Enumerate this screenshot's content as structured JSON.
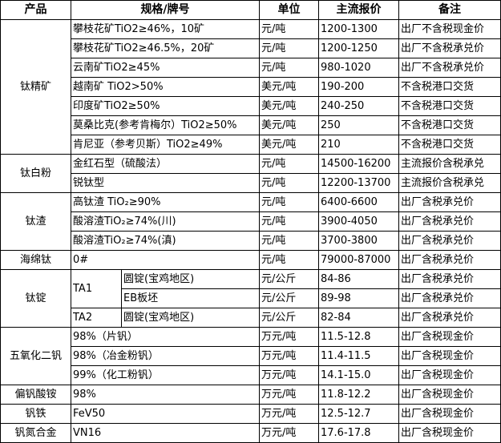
{
  "headers": {
    "product": "产品",
    "spec": "规格/牌号",
    "unit": "单位",
    "price": "主流报价",
    "note": "备注"
  },
  "groups": [
    {
      "product": "钛精矿",
      "rows": [
        {
          "spec": "攀枝花矿TiO2≥46%，10矿",
          "unit": "元/吨",
          "price": "1200-1300",
          "note": "出厂不含税现金价"
        },
        {
          "spec": "攀枝花矿TiO2≥46.5%，20矿",
          "unit": "元/吨",
          "price": "1200-1250",
          "note": "出厂不含税承兑价"
        },
        {
          "spec": "云南矿TiO2≥45%",
          "unit": "元/吨",
          "price": "980-1020",
          "note": "出厂不含税承兑价"
        },
        {
          "spec": "越南矿 TiO2>50%",
          "unit": "美元/吨",
          "price": "190-200",
          "note": "不含税港口交货"
        },
        {
          "spec": "印度矿TiO2≥50%",
          "unit": "美元/吨",
          "price": "240-250",
          "note": "不含税港口交货"
        },
        {
          "spec": "莫桑比克(参考肯梅尔）TiO2≥50%",
          "unit": "美元/吨",
          "price": "250",
          "note": "不含税港口交货"
        },
        {
          "spec": "肯尼亚（参考贝斯）TiO2≥49%",
          "unit": "美元/吨",
          "price": "210",
          "note": "不含税港口交货"
        }
      ]
    },
    {
      "product": "钛白粉",
      "rows": [
        {
          "spec": "金红石型（硫酸法）",
          "unit": "元/吨",
          "price": "14500-16200",
          "note": "主流报价含税承兑"
        },
        {
          "spec": "锐钛型",
          "unit": "元/吨",
          "price": "12200-13700",
          "note": "主流报价含税承兑"
        }
      ]
    },
    {
      "product": "钛渣",
      "rows": [
        {
          "spec": "高钛渣 TiO₂≥90%",
          "unit": "元/吨",
          "price": "6400-6600",
          "note": "出厂含税承兑价"
        },
        {
          "spec": "酸溶渣TiO₂≥74%(川)",
          "unit": "元/吨",
          "price": "3900-4050",
          "note": "出厂含税承兑价"
        },
        {
          "spec": "酸溶渣TiO₂≥74%(滇)",
          "unit": "元/吨",
          "price": "3700-3800",
          "note": "出厂含税承兑价"
        }
      ]
    },
    {
      "product": "海绵钛",
      "rows": [
        {
          "spec": "0#",
          "unit": "元/吨",
          "price": "79000-87000",
          "note": "出厂含税承兑价"
        }
      ]
    },
    {
      "product": "钛锭",
      "rows": [
        {
          "grade": "TA1",
          "spec": "圆锭(宝鸡地区)",
          "unit": "元/公斤",
          "price": "84-86",
          "note": "出厂含税承兑价"
        },
        {
          "grade": "TA1",
          "spec": "EB板坯",
          "unit": "元/公斤",
          "price": "89-98",
          "note": "出厂含税承兑价"
        },
        {
          "grade": "TA2",
          "spec": "圆锭(宝鸡地区)",
          "unit": "元/公斤",
          "price": "82-84",
          "note": "出厂含税承兑价"
        }
      ]
    },
    {
      "product": "五氧化二钒",
      "rows": [
        {
          "spec": "98%（片钒）",
          "unit": "万元/吨",
          "price": "11.5-12.8",
          "note": "出厂含税现金价"
        },
        {
          "spec": "98%（冶金粉钒）",
          "unit": "万元/吨",
          "price": "11.4-11.5",
          "note": "出厂含税现金价"
        },
        {
          "spec": "99%（化工粉钒）",
          "unit": "万元/吨",
          "price": "14.1-15.0",
          "note": "出厂含税现金价"
        }
      ]
    },
    {
      "product": "偏钒酸铵",
      "rows": [
        {
          "spec": "98%",
          "unit": "万元/吨",
          "price": "11.8-12.2",
          "note": "出厂含税现金价"
        }
      ]
    },
    {
      "product": "钒铁",
      "rows": [
        {
          "spec": "FeV50",
          "unit": "万元/吨",
          "price": "12.5-12.7",
          "note": "出厂含税现金价"
        }
      ]
    },
    {
      "product": "钒氮合金",
      "rows": [
        {
          "spec": "VN16",
          "unit": "万元/吨",
          "price": "17.6-17.8",
          "note": "出厂含税现金价"
        }
      ]
    }
  ]
}
